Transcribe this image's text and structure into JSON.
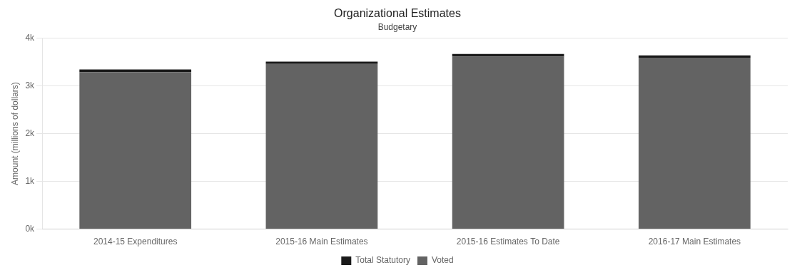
{
  "chart_data": {
    "type": "bar",
    "stacked": true,
    "title": "Organizational Estimates",
    "subtitle": "Budgetary",
    "categories": [
      "2014-15 Expenditures",
      "2015-16 Main Estimates",
      "2015-16 Estimates To Date",
      "2016-17 Main Estimates"
    ],
    "series": [
      {
        "name": "Voted",
        "color": "#636363",
        "values": [
          3290,
          3460,
          3615,
          3590
        ]
      },
      {
        "name": "Total Statutory",
        "color": "#1a1a1a",
        "values": [
          55,
          50,
          55,
          50
        ]
      }
    ],
    "ylabel": "Amount (millions of dollars)",
    "ylim": [
      0,
      4000
    ],
    "yticks": [
      {
        "value": 0,
        "label": "0k"
      },
      {
        "value": 1000,
        "label": "1k"
      },
      {
        "value": 2000,
        "label": "2k"
      },
      {
        "value": 3000,
        "label": "3k"
      },
      {
        "value": 4000,
        "label": "4k"
      }
    ],
    "grid": true,
    "legend": "bottom"
  }
}
